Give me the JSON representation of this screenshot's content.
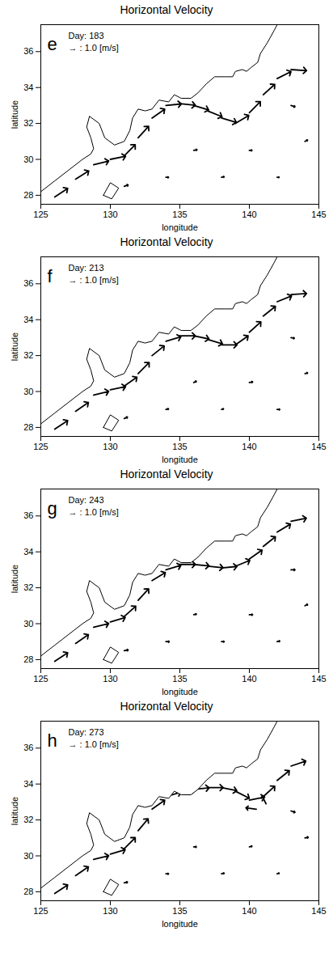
{
  "chart_data": [
    {
      "type": "vector",
      "title": "Horizontal Velocity",
      "panel": "e",
      "day_label": "Day: 183",
      "reference_label": "→ : 1.0 [m/s]",
      "reference_speed": 1.0,
      "xlabel": "longitude",
      "ylabel": "latitude",
      "xlim": [
        125,
        145
      ],
      "xticks": [
        125,
        130,
        135,
        140,
        145
      ],
      "ylim": [
        27.5,
        37.5
      ],
      "yticks": [
        28,
        30,
        32,
        34,
        36
      ],
      "vectors": [
        [
          126.0,
          27.9,
          1.0,
          0.67
        ],
        [
          127.5,
          28.9,
          1.02,
          0.63
        ],
        [
          128.8,
          29.7,
          1.16,
          0.29
        ],
        [
          130.0,
          30.0,
          1.18,
          0.24
        ],
        [
          131.0,
          30.2,
          0.85,
          0.85
        ],
        [
          132.0,
          31.2,
          0.81,
          0.89
        ],
        [
          133.0,
          32.3,
          0.98,
          0.69
        ],
        [
          134.0,
          33.0,
          1.19,
          0.12
        ],
        [
          135.0,
          33.1,
          1.2,
          -0.12
        ],
        [
          136.0,
          33.0,
          1.15,
          -0.34
        ],
        [
          137.0,
          32.7,
          1.11,
          -0.45
        ],
        [
          138.0,
          32.3,
          1.15,
          -0.34
        ],
        [
          139.0,
          32.0,
          1.03,
          0.62
        ],
        [
          140.0,
          32.6,
          0.85,
          0.85
        ],
        [
          141.0,
          33.6,
          0.89,
          0.8
        ],
        [
          142.0,
          34.5,
          1.07,
          0.54
        ],
        [
          143.0,
          35.0,
          1.2,
          -0.08
        ],
        [
          131.0,
          28.5,
          0.3,
          0.1
        ],
        [
          134.0,
          29.0,
          0.2,
          0.0
        ],
        [
          138.0,
          29.0,
          0.2,
          0.05
        ],
        [
          142.0,
          29.0,
          0.15,
          0.0
        ],
        [
          136.0,
          30.5,
          0.25,
          0.05
        ],
        [
          140.0,
          30.5,
          0.2,
          0.0
        ],
        [
          144.0,
          31.0,
          0.2,
          0.1
        ],
        [
          143.0,
          33.0,
          0.3,
          -0.1
        ]
      ]
    },
    {
      "type": "vector",
      "title": "Horizontal Velocity",
      "panel": "f",
      "day_label": "Day: 213",
      "reference_label": "→ : 1.0 [m/s]",
      "reference_speed": 1.0,
      "xlabel": "longitude",
      "ylabel": "latitude",
      "xlim": [
        125,
        145
      ],
      "xticks": [
        125,
        130,
        135,
        140,
        145
      ],
      "ylim": [
        27.5,
        37.5
      ],
      "yticks": [
        28,
        30,
        32,
        34,
        36
      ],
      "vectors": [
        [
          126.0,
          27.9,
          1.0,
          0.67
        ],
        [
          127.5,
          28.9,
          0.99,
          0.68
        ],
        [
          128.8,
          29.8,
          1.16,
          0.29
        ],
        [
          130.0,
          30.1,
          1.18,
          0.24
        ],
        [
          131.0,
          30.3,
          0.98,
          0.69
        ],
        [
          132.0,
          31.0,
          0.85,
          0.85
        ],
        [
          133.0,
          32.0,
          0.94,
          0.75
        ],
        [
          134.0,
          32.8,
          1.15,
          0.34
        ],
        [
          135.0,
          33.1,
          1.2,
          0.0
        ],
        [
          136.0,
          33.1,
          1.18,
          -0.24
        ],
        [
          137.0,
          32.9,
          1.15,
          -0.34
        ],
        [
          138.0,
          32.6,
          1.2,
          0.0
        ],
        [
          139.0,
          32.6,
          0.98,
          0.69
        ],
        [
          140.0,
          33.3,
          0.89,
          0.8
        ],
        [
          141.0,
          34.2,
          0.94,
          0.75
        ],
        [
          142.0,
          35.0,
          1.11,
          0.45
        ],
        [
          143.0,
          35.4,
          1.2,
          0.08
        ],
        [
          131.0,
          28.5,
          0.25,
          0.1
        ],
        [
          134.0,
          29.0,
          0.2,
          0.05
        ],
        [
          138.0,
          29.0,
          0.15,
          0.05
        ],
        [
          142.0,
          29.0,
          0.2,
          0.0
        ],
        [
          136.0,
          30.5,
          0.2,
          0.1
        ],
        [
          140.0,
          30.5,
          0.25,
          0.05
        ],
        [
          144.0,
          31.0,
          0.2,
          0.05
        ],
        [
          143.0,
          33.0,
          0.25,
          -0.05
        ]
      ]
    },
    {
      "type": "vector",
      "title": "Horizontal Velocity",
      "panel": "g",
      "day_label": "Day: 243",
      "reference_label": "→ : 1.0 [m/s]",
      "reference_speed": 1.0,
      "xlabel": "longitude",
      "ylabel": "latitude",
      "xlim": [
        125,
        145
      ],
      "xticks": [
        125,
        130,
        135,
        140,
        145
      ],
      "ylim": [
        27.5,
        37.5
      ],
      "yticks": [
        28,
        30,
        32,
        34,
        36
      ],
      "vectors": [
        [
          126.0,
          27.9,
          1.0,
          0.67
        ],
        [
          127.5,
          28.9,
          0.99,
          0.68
        ],
        [
          128.8,
          29.8,
          1.16,
          0.29
        ],
        [
          130.0,
          30.1,
          1.15,
          0.34
        ],
        [
          131.0,
          30.4,
          0.89,
          0.8
        ],
        [
          132.0,
          31.3,
          0.81,
          0.89
        ],
        [
          133.0,
          32.4,
          1.03,
          0.62
        ],
        [
          134.0,
          33.0,
          1.15,
          0.34
        ],
        [
          135.0,
          33.3,
          1.2,
          0.0
        ],
        [
          136.0,
          33.3,
          1.19,
          -0.12
        ],
        [
          137.0,
          33.2,
          1.19,
          -0.12
        ],
        [
          138.0,
          33.1,
          1.19,
          0.12
        ],
        [
          139.0,
          33.2,
          1.11,
          0.45
        ],
        [
          140.0,
          33.6,
          0.98,
          0.69
        ],
        [
          141.0,
          34.3,
          0.94,
          0.75
        ],
        [
          142.0,
          35.1,
          1.03,
          0.62
        ],
        [
          143.0,
          35.7,
          1.18,
          0.24
        ],
        [
          131.0,
          28.5,
          0.3,
          0.05
        ],
        [
          134.0,
          29.0,
          0.25,
          0.0
        ],
        [
          138.0,
          29.0,
          0.2,
          0.0
        ],
        [
          142.0,
          29.0,
          0.2,
          0.05
        ],
        [
          136.0,
          30.5,
          0.2,
          0.05
        ],
        [
          140.0,
          30.5,
          0.25,
          0.0
        ],
        [
          144.0,
          31.0,
          0.2,
          0.1
        ],
        [
          143.0,
          33.0,
          0.3,
          0.0
        ]
      ]
    },
    {
      "type": "vector",
      "title": "Horizontal Velocity",
      "panel": "h",
      "day_label": "Day: 273",
      "reference_label": "→ : 1.0 [m/s]",
      "reference_speed": 1.0,
      "xlabel": "longitude",
      "ylabel": "latitude",
      "xlim": [
        125,
        145
      ],
      "xticks": [
        125,
        130,
        135,
        140,
        145
      ],
      "ylim": [
        27.5,
        37.5
      ],
      "yticks": [
        28,
        30,
        32,
        34,
        36
      ],
      "vectors": [
        [
          126.0,
          27.9,
          1.0,
          0.67
        ],
        [
          127.5,
          28.9,
          0.99,
          0.68
        ],
        [
          128.8,
          29.8,
          1.16,
          0.29
        ],
        [
          130.0,
          30.1,
          1.15,
          0.34
        ],
        [
          131.0,
          30.4,
          0.85,
          0.85
        ],
        [
          132.0,
          31.4,
          0.77,
          0.92
        ],
        [
          133.0,
          32.6,
          0.98,
          0.69
        ],
        [
          134.0,
          33.3,
          1.15,
          0.34
        ],
        [
          135.0,
          33.6,
          1.19,
          0.12
        ],
        [
          136.0,
          33.7,
          1.19,
          0.12
        ],
        [
          137.0,
          33.8,
          1.2,
          0.0
        ],
        [
          138.0,
          33.8,
          1.18,
          -0.24
        ],
        [
          139.0,
          33.6,
          1.07,
          -0.54
        ],
        [
          140.0,
          33.1,
          1.18,
          0.24
        ],
        [
          141.0,
          33.3,
          0.89,
          0.8
        ],
        [
          142.0,
          34.2,
          0.94,
          0.75
        ],
        [
          143.0,
          35.0,
          1.14,
          0.38
        ],
        [
          140.5,
          32.6,
          -0.8,
          0.1
        ],
        [
          141.2,
          32.9,
          -0.3,
          0.6
        ],
        [
          131.0,
          28.5,
          0.25,
          0.05
        ],
        [
          134.0,
          29.0,
          0.2,
          0.0
        ],
        [
          138.0,
          29.0,
          0.2,
          0.05
        ],
        [
          142.0,
          29.0,
          0.15,
          0.05
        ],
        [
          136.0,
          30.5,
          0.2,
          0.0
        ],
        [
          140.0,
          30.5,
          0.2,
          0.05
        ],
        [
          144.0,
          31.0,
          0.25,
          0.05
        ],
        [
          143.0,
          32.5,
          0.3,
          -0.1
        ]
      ]
    }
  ],
  "coastline": {
    "land": [
      [
        125,
        37.5
      ],
      [
        125,
        28.2
      ],
      [
        126,
        28.8
      ],
      [
        127,
        29.4
      ],
      [
        128,
        30.0
      ],
      [
        128.6,
        30.3
      ],
      [
        128.8,
        30.6
      ],
      [
        128.6,
        31.2
      ],
      [
        128.3,
        31.8
      ],
      [
        128.5,
        32.4
      ],
      [
        129.2,
        32.0
      ],
      [
        129.6,
        31.2
      ],
      [
        130.3,
        30.8
      ],
      [
        131.0,
        31.0
      ],
      [
        131.4,
        31.6
      ],
      [
        131.6,
        32.3
      ],
      [
        132.0,
        32.8
      ],
      [
        132.5,
        32.7
      ],
      [
        133.0,
        32.8
      ],
      [
        133.5,
        33.3
      ],
      [
        134.2,
        33.2
      ],
      [
        134.6,
        33.6
      ],
      [
        135.1,
        33.4
      ],
      [
        135.8,
        33.4
      ],
      [
        136.3,
        33.7
      ],
      [
        136.9,
        34.2
      ],
      [
        137.5,
        34.6
      ],
      [
        138.3,
        34.6
      ],
      [
        138.8,
        34.6
      ],
      [
        139.0,
        34.9
      ],
      [
        139.5,
        35.0
      ],
      [
        139.8,
        34.9
      ],
      [
        140.1,
        35.1
      ],
      [
        140.6,
        35.4
      ],
      [
        140.8,
        35.9
      ],
      [
        141.3,
        36.5
      ],
      [
        141.8,
        37.2
      ],
      [
        142.0,
        37.5
      ],
      [
        125,
        37.5
      ]
    ],
    "islands": [
      [
        [
          129.5,
          28.0
        ],
        [
          130.0,
          28.7
        ],
        [
          130.6,
          28.4
        ],
        [
          130.1,
          27.8
        ],
        [
          129.5,
          28.0
        ]
      ]
    ]
  }
}
